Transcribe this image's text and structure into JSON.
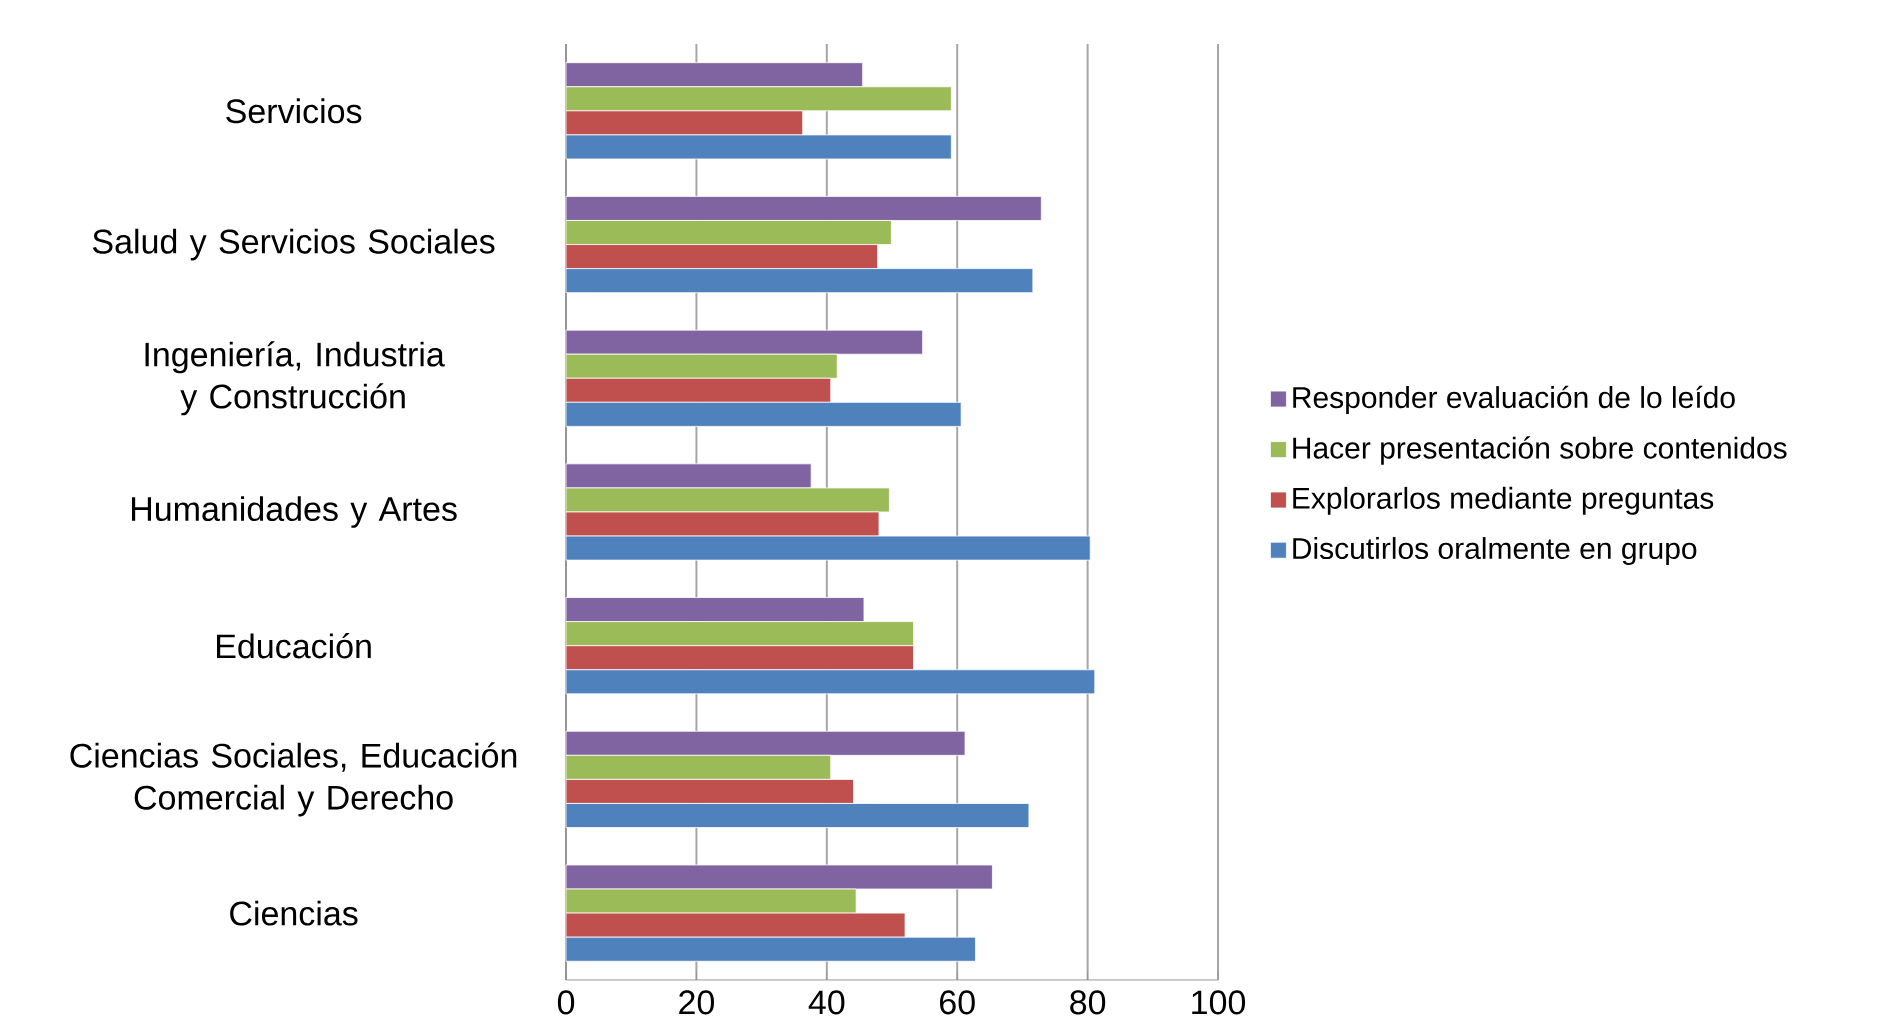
{
  "chart_data": {
    "type": "bar",
    "orientation": "horizontal",
    "categories": [
      "Servicios",
      "Salud y Servicios Sociales",
      "Ingeniería, Industria y Construcción",
      "Humanidades y Artes",
      "Educación",
      "Ciencias Sociales, Educación Comercial y Derecho",
      "Ciencias"
    ],
    "series": [
      {
        "name": "Responder evaluación de lo leído",
        "color": "#8064a2",
        "values": [
          45.5,
          72.9,
          54.7,
          37.6,
          45.7,
          61.2,
          65.4
        ]
      },
      {
        "name": "Hacer presentación sobre contenidos",
        "color": "#9bbb59",
        "values": [
          59.1,
          49.9,
          41.6,
          49.6,
          53.3,
          40.6,
          44.5
        ]
      },
      {
        "name": "Explorarlos mediante preguntas",
        "color": "#c0504d",
        "values": [
          36.3,
          47.8,
          40.6,
          48.0,
          53.3,
          44.1,
          52.0
        ]
      },
      {
        "name": "Discutirlos oralmente en grupo",
        "color": "#4f81bd",
        "values": [
          59.1,
          71.6,
          60.6,
          80.4,
          81.1,
          71.0,
          62.8
        ]
      }
    ],
    "xlim": [
      0,
      100
    ],
    "xticks": [
      0,
      20,
      40,
      60,
      80,
      100
    ],
    "grid": "x",
    "legend": "right"
  }
}
